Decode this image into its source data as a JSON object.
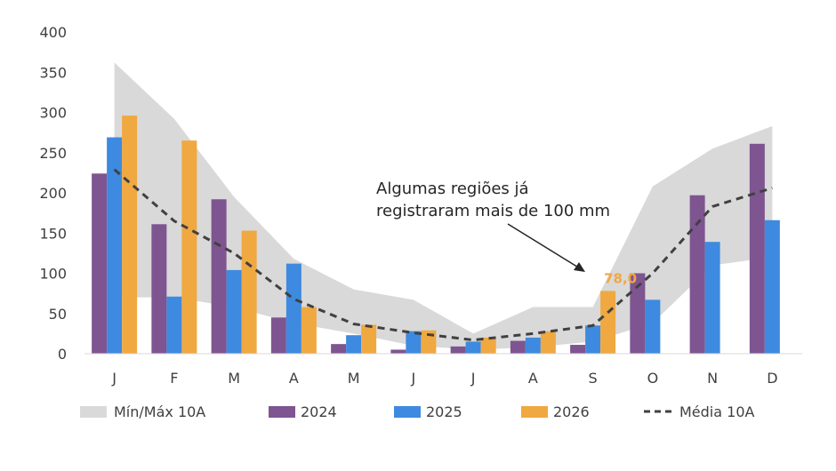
{
  "chart_data": {
    "type": "bar",
    "categories": [
      "J",
      "F",
      "M",
      "A",
      "M",
      "J",
      "J",
      "A",
      "S",
      "O",
      "N",
      "D"
    ],
    "ylim": [
      0,
      400
    ],
    "yticks": [
      0,
      50,
      100,
      150,
      200,
      250,
      300,
      350,
      400
    ],
    "grid": false,
    "legend_position": "bottom",
    "band": {
      "name": "Mín/Máx 10A",
      "color": "#d9d9d9",
      "min": [
        70,
        70,
        58,
        38,
        25,
        10,
        5,
        8,
        15,
        38,
        110,
        120
      ],
      "max": [
        362,
        292,
        195,
        118,
        80,
        67,
        25,
        58,
        58,
        208,
        255,
        283
      ]
    },
    "series": [
      {
        "name": "2024",
        "color": "#7e5590",
        "values": [
          224,
          161,
          192,
          45,
          12,
          5,
          9,
          16,
          11,
          100,
          197,
          261
        ]
      },
      {
        "name": "2025",
        "color": "#3d8ae0",
        "values": [
          269,
          71,
          104,
          112,
          23,
          28,
          15,
          20,
          35,
          67,
          139,
          166
        ]
      },
      {
        "name": "2026",
        "color": "#f0a840",
        "values": [
          296,
          265,
          153,
          58,
          36,
          29,
          20,
          28,
          78,
          null,
          null,
          null
        ]
      }
    ],
    "average": {
      "name": "Média 10A",
      "color": "#404040",
      "values": [
        229,
        165,
        125,
        68,
        37,
        26,
        17,
        25,
        35,
        100,
        183,
        206
      ]
    },
    "data_label": {
      "series": "2026",
      "index": 8,
      "text": "78,0",
      "color": "#f0a840"
    },
    "annotation": {
      "lines": [
        "Algumas regiões já",
        "registraram mais de 100 mm"
      ]
    }
  }
}
